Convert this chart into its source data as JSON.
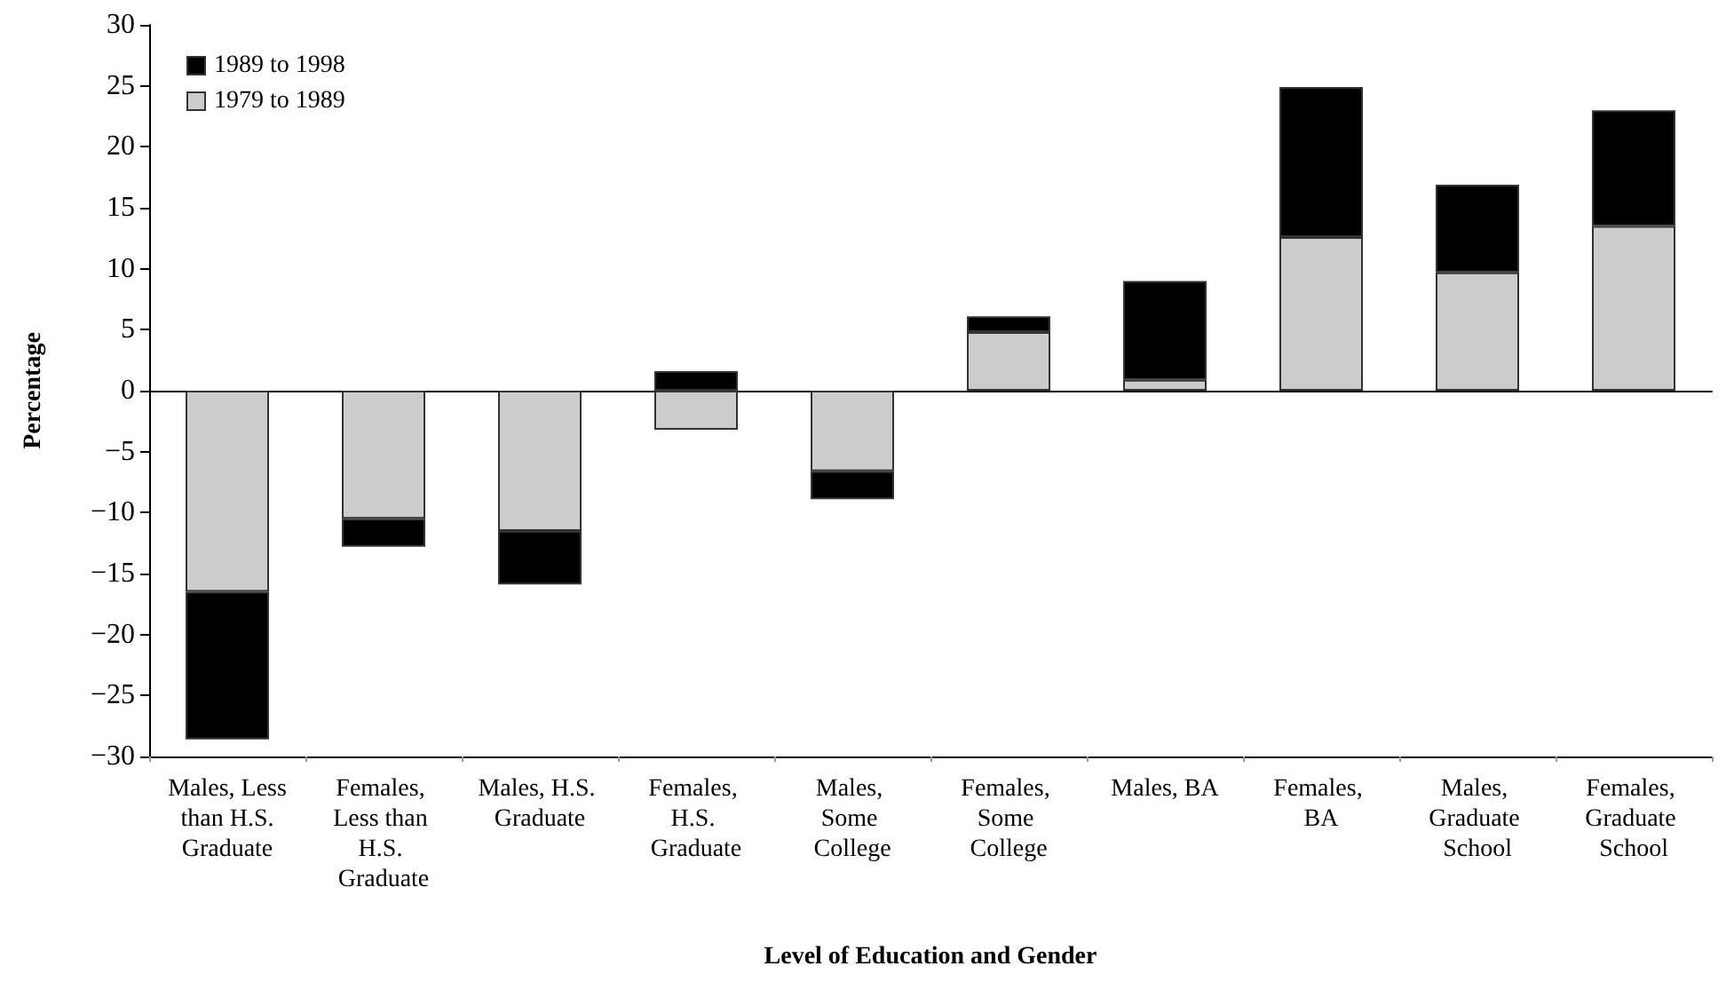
{
  "chart_data": {
    "type": "bar",
    "stacked": true,
    "xlabel": "Level of Education and Gender",
    "ylabel": "Percentage",
    "categories": [
      "Males, Less than H.S. Graduate",
      "Females, Less than H.S. Graduate",
      "Males, H.S. Graduate",
      "Females, H.S. Graduate",
      "Males, Some College",
      "Females, Some College",
      "Males, BA",
      "Females, BA",
      "Males, Graduate School",
      "Females, Graduate School"
    ],
    "series": [
      {
        "name": "1979 to 1989",
        "color": "#cccccc",
        "values": [
          -16.5,
          -10.5,
          -11.5,
          -3.2,
          -6.6,
          4.8,
          0.9,
          12.6,
          9.7,
          13.5
        ]
      },
      {
        "name": "1989 to 1998",
        "color": "#000000",
        "values": [
          -12.1,
          -2.3,
          -4.4,
          1.6,
          -2.3,
          1.3,
          8.1,
          12.3,
          7.2,
          9.5
        ]
      }
    ],
    "ylim": [
      -30,
      30
    ],
    "yticks": [
      -30,
      -25,
      -20,
      -15,
      -10,
      -5,
      0,
      5,
      10,
      15,
      20,
      25,
      30
    ],
    "legend": "top left"
  }
}
